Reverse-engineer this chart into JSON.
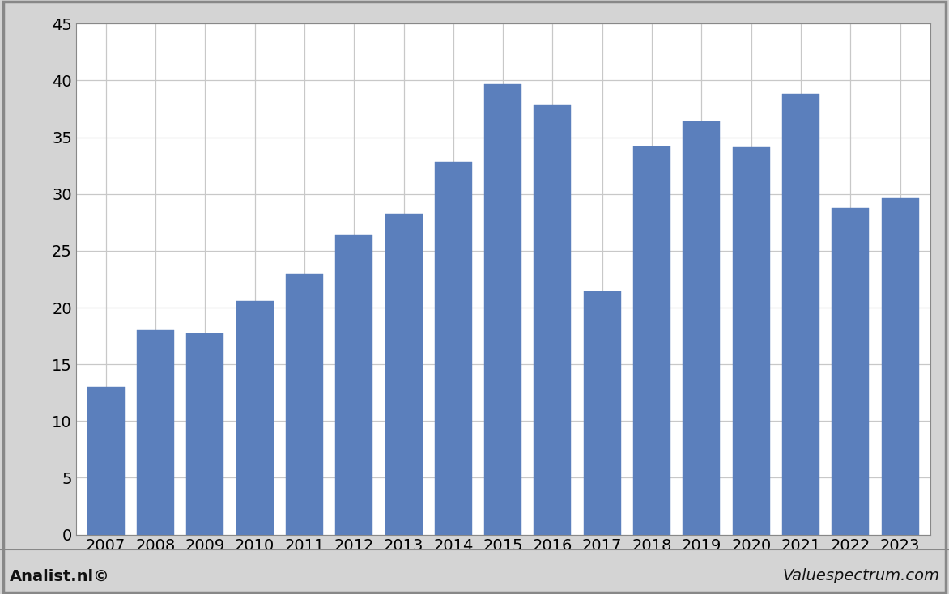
{
  "years": [
    2007,
    2008,
    2009,
    2010,
    2011,
    2012,
    2013,
    2014,
    2015,
    2016,
    2017,
    2018,
    2019,
    2020,
    2021,
    2022,
    2023
  ],
  "values": [
    13.0,
    18.0,
    17.7,
    20.6,
    23.0,
    26.4,
    28.3,
    32.8,
    39.7,
    37.8,
    21.4,
    34.2,
    36.4,
    34.1,
    38.8,
    28.8,
    29.6
  ],
  "bar_color": "#5b7fbc",
  "ylim": [
    0,
    45
  ],
  "yticks": [
    0,
    5,
    10,
    15,
    20,
    25,
    30,
    35,
    40,
    45
  ],
  "background_color": "#d4d4d4",
  "plot_bg_color": "#ffffff",
  "footer_left": "Analist.nl©",
  "footer_right": "Valuespectrum.com",
  "footer_fontsize": 14,
  "grid_color": "#c8c8c8",
  "bar_edge_color": "#5b7fbc",
  "tick_fontsize": 14,
  "border_color": "#888888",
  "frame_color": "#aaaaaa"
}
